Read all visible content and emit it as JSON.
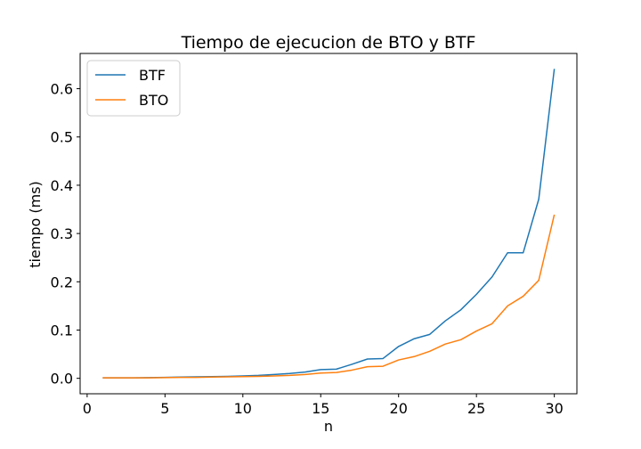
{
  "chart_data": {
    "type": "line",
    "title": "Tiempo de ejecucion de BTO y BTF",
    "xlabel": "n",
    "ylabel": "tiempo (ms)",
    "xlim": [
      -0.45,
      31.45
    ],
    "ylim": [
      -0.032,
      0.673
    ],
    "xticks": [
      0,
      5,
      10,
      15,
      20,
      25,
      30
    ],
    "yticks": [
      0.0,
      0.1,
      0.2,
      0.3,
      0.4,
      0.5,
      0.6
    ],
    "grid": false,
    "legend_position": "top-left",
    "x": [
      1,
      2,
      3,
      4,
      5,
      6,
      7,
      8,
      9,
      10,
      11,
      12,
      13,
      14,
      15,
      16,
      17,
      18,
      19,
      20,
      21,
      22,
      23,
      24,
      25,
      26,
      27,
      28,
      29,
      30
    ],
    "series": [
      {
        "name": "BTF",
        "color": "#1f77b4",
        "values": [
          0.001,
          0.001,
          0.001,
          0.0015,
          0.002,
          0.0025,
          0.003,
          0.0035,
          0.004,
          0.005,
          0.006,
          0.008,
          0.01,
          0.013,
          0.018,
          0.019,
          0.029,
          0.04,
          0.041,
          0.066,
          0.082,
          0.091,
          0.119,
          0.142,
          0.174,
          0.21,
          0.26,
          0.26,
          0.371,
          0.641
        ]
      },
      {
        "name": "BTO",
        "color": "#ff7f0e",
        "values": [
          0.001,
          0.001,
          0.001,
          0.001,
          0.0015,
          0.002,
          0.002,
          0.0025,
          0.003,
          0.0035,
          0.004,
          0.005,
          0.006,
          0.008,
          0.011,
          0.012,
          0.017,
          0.024,
          0.025,
          0.038,
          0.045,
          0.056,
          0.071,
          0.08,
          0.098,
          0.113,
          0.15,
          0.17,
          0.203,
          0.339
        ]
      }
    ]
  }
}
